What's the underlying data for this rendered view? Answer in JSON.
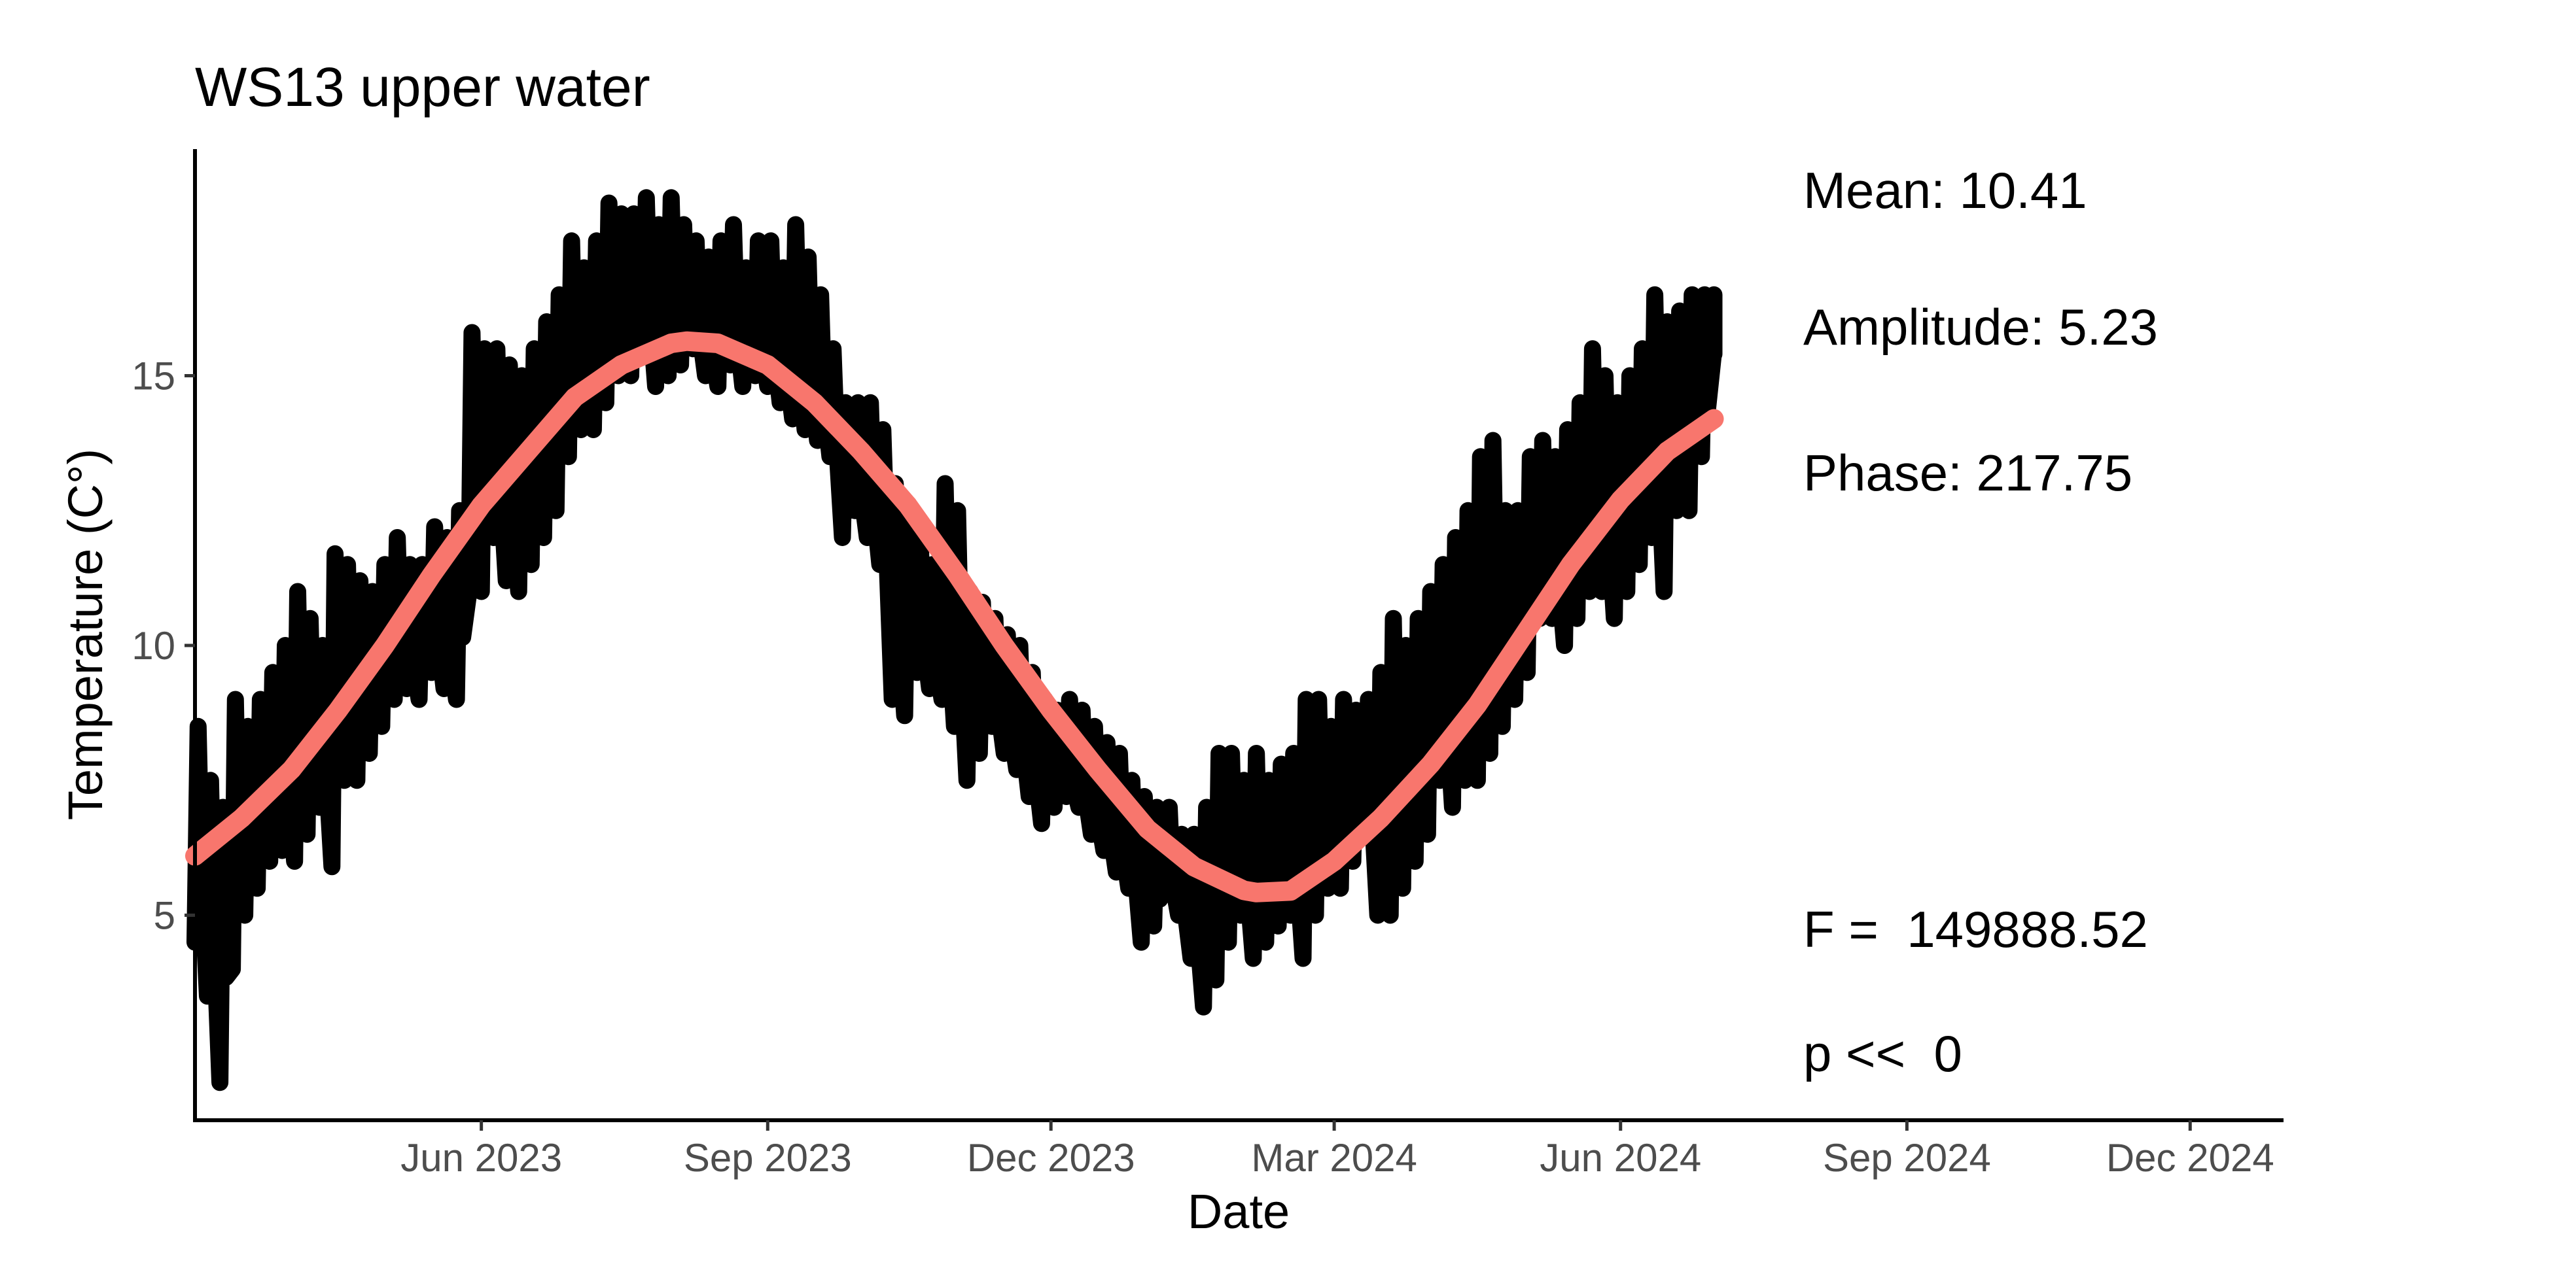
{
  "chart_data": {
    "type": "line",
    "title": "WS13 upper water",
    "xlabel": "Date",
    "ylabel": "Temperature (C°)",
    "xlim": [
      "2023-03-01",
      "2024-12-31"
    ],
    "ylim": [
      1.2,
      19.2
    ],
    "x_ticks": [
      {
        "date": "2023-06-01",
        "label": "Jun 2023"
      },
      {
        "date": "2023-09-01",
        "label": "Sep 2023"
      },
      {
        "date": "2023-12-01",
        "label": "Dec 2023"
      },
      {
        "date": "2024-03-01",
        "label": "Mar 2024"
      },
      {
        "date": "2024-06-01",
        "label": "Jun 2024"
      },
      {
        "date": "2024-09-01",
        "label": "Sep 2024"
      },
      {
        "date": "2024-12-01",
        "label": "Dec 2024"
      }
    ],
    "y_ticks": [
      5,
      10,
      15
    ],
    "grid": false,
    "series": [
      {
        "role": "observed",
        "color": "#000000",
        "x": [
          "2023-03-01",
          "2023-03-05",
          "2023-03-09",
          "2023-03-13",
          "2023-03-17",
          "2023-03-21",
          "2023-03-25",
          "2023-03-29",
          "2023-04-02",
          "2023-04-06",
          "2023-04-10",
          "2023-04-14",
          "2023-04-18",
          "2023-04-22",
          "2023-04-26",
          "2023-04-30",
          "2023-05-04",
          "2023-05-08",
          "2023-05-12",
          "2023-05-16",
          "2023-05-20",
          "2023-05-24",
          "2023-05-28",
          "2023-06-01",
          "2023-06-05",
          "2023-06-09",
          "2023-06-13",
          "2023-06-17",
          "2023-06-21",
          "2023-06-25",
          "2023-06-29",
          "2023-07-03",
          "2023-07-07",
          "2023-07-11",
          "2023-07-15",
          "2023-07-19",
          "2023-07-23",
          "2023-07-27",
          "2023-07-31",
          "2023-08-04",
          "2023-08-08",
          "2023-08-12",
          "2023-08-16",
          "2023-08-20",
          "2023-08-24",
          "2023-08-28",
          "2023-09-01",
          "2023-09-05",
          "2023-09-09",
          "2023-09-13",
          "2023-09-17",
          "2023-09-21",
          "2023-09-25",
          "2023-09-29",
          "2023-10-03",
          "2023-10-07",
          "2023-10-11",
          "2023-10-15",
          "2023-10-19",
          "2023-10-23",
          "2023-10-27",
          "2023-10-31",
          "2023-11-04",
          "2023-11-08",
          "2023-11-12",
          "2023-11-16",
          "2023-11-20",
          "2023-11-24",
          "2023-11-28",
          "2023-12-02",
          "2023-12-06",
          "2023-12-10",
          "2023-12-14",
          "2023-12-18",
          "2023-12-22",
          "2023-12-26",
          "2023-12-30",
          "2024-01-03",
          "2024-01-07",
          "2024-01-11",
          "2024-01-15",
          "2024-01-19",
          "2024-01-23",
          "2024-01-27",
          "2024-01-31",
          "2024-02-04",
          "2024-02-08",
          "2024-02-12",
          "2024-02-16",
          "2024-02-20",
          "2024-02-24",
          "2024-02-28",
          "2024-03-03",
          "2024-03-07",
          "2024-03-11",
          "2024-03-15",
          "2024-03-19",
          "2024-03-23",
          "2024-03-27",
          "2024-03-31",
          "2024-04-04",
          "2024-04-08",
          "2024-04-12",
          "2024-04-16",
          "2024-04-20",
          "2024-04-24",
          "2024-04-28",
          "2024-05-02",
          "2024-05-06",
          "2024-05-10",
          "2024-05-14",
          "2024-05-18",
          "2024-05-22",
          "2024-05-26",
          "2024-05-30",
          "2024-06-03",
          "2024-06-07",
          "2024-06-11",
          "2024-06-15",
          "2024-06-19",
          "2024-06-23",
          "2024-06-27",
          "2024-07-01"
        ],
        "ymin": [
          4.5,
          3.5,
          1.9,
          4.0,
          5.0,
          5.5,
          6.0,
          6.2,
          6.0,
          6.5,
          7.0,
          5.9,
          7.5,
          7.5,
          8.0,
          8.5,
          9.0,
          9.2,
          9.0,
          9.5,
          9.2,
          9.0,
          11.0,
          11.0,
          12.0,
          11.2,
          11.0,
          11.5,
          12.0,
          12.5,
          13.5,
          14.0,
          14.0,
          14.5,
          15.0,
          15.0,
          15.5,
          14.8,
          15.0,
          15.2,
          15.5,
          15.0,
          14.8,
          15.2,
          14.8,
          15.0,
          14.8,
          14.5,
          14.2,
          14.0,
          13.8,
          13.5,
          12.0,
          12.5,
          12.0,
          11.5,
          9.0,
          8.7,
          9.5,
          9.2,
          9.0,
          8.5,
          7.5,
          8.0,
          8.5,
          8.0,
          7.7,
          7.2,
          6.7,
          7.0,
          7.2,
          7.0,
          6.5,
          6.2,
          5.8,
          5.5,
          4.5,
          4.8,
          5.5,
          5.0,
          4.2,
          3.3,
          3.8,
          4.5,
          5.0,
          4.2,
          4.5,
          4.8,
          5.0,
          4.2,
          5.0,
          5.5,
          5.5,
          6.0,
          6.5,
          5.0,
          5.0,
          5.5,
          6.0,
          6.5,
          7.5,
          7.0,
          7.5,
          7.5,
          8.0,
          8.5,
          9.0,
          9.5,
          10.5,
          10.5,
          10.0,
          10.5,
          11.0,
          11.0,
          10.5,
          11.0,
          11.5,
          12.0,
          11.0,
          12.5,
          12.5,
          13.5,
          15.5
        ],
        "ymax": [
          8.5,
          7.5,
          7.0,
          9.0,
          8.5,
          9.0,
          9.5,
          10.0,
          11.0,
          10.5,
          10.0,
          11.7,
          11.5,
          11.2,
          11.0,
          11.5,
          12.0,
          11.5,
          11.5,
          12.2,
          12.0,
          12.5,
          15.8,
          15.5,
          15.5,
          15.2,
          15.0,
          15.5,
          16.0,
          16.5,
          17.5,
          17.0,
          17.5,
          18.2,
          18.0,
          18.0,
          18.3,
          17.8,
          18.3,
          17.8,
          17.5,
          17.2,
          17.5,
          17.8,
          17.0,
          17.5,
          17.5,
          17.0,
          17.8,
          17.2,
          16.5,
          15.5,
          14.5,
          14.5,
          14.5,
          14.0,
          13.0,
          12.5,
          12.0,
          11.5,
          13.0,
          12.5,
          11.0,
          10.8,
          10.5,
          10.2,
          10.0,
          9.5,
          9.0,
          8.8,
          9.0,
          8.8,
          8.5,
          8.2,
          8.0,
          7.5,
          7.2,
          7.0,
          7.0,
          6.5,
          6.5,
          7.0,
          8.0,
          8.0,
          7.5,
          8.0,
          7.5,
          7.8,
          8.0,
          9.0,
          9.0,
          8.5,
          9.0,
          8.8,
          9.0,
          9.5,
          10.5,
          10.0,
          10.5,
          11.0,
          11.5,
          12.0,
          12.5,
          13.5,
          13.8,
          12.5,
          12.5,
          13.5,
          13.8,
          13.5,
          14.0,
          14.5,
          15.5,
          15.0,
          14.5,
          15.0,
          15.5,
          16.5,
          16.0,
          16.2,
          16.5,
          16.5,
          16.5
        ]
      },
      {
        "role": "fitted",
        "color": "#F8766D",
        "x": [
          "2023-03-01",
          "2023-03-16",
          "2023-04-01",
          "2023-04-16",
          "2023-05-01",
          "2023-05-16",
          "2023-06-01",
          "2023-06-16",
          "2023-07-01",
          "2023-07-16",
          "2023-08-01",
          "2023-08-06",
          "2023-08-16",
          "2023-09-01",
          "2023-09-16",
          "2023-10-01",
          "2023-10-16",
          "2023-11-01",
          "2023-11-16",
          "2023-12-01",
          "2023-12-16",
          "2024-01-01",
          "2024-01-16",
          "2024-02-01",
          "2024-02-05",
          "2024-02-16",
          "2024-03-01",
          "2024-03-16",
          "2024-04-01",
          "2024-04-16",
          "2024-05-01",
          "2024-05-16",
          "2024-06-01",
          "2024-06-16",
          "2024-07-01"
        ],
        "y": [
          6.1,
          6.8,
          7.7,
          8.8,
          10.0,
          11.3,
          12.6,
          13.6,
          14.6,
          15.2,
          15.6,
          15.64,
          15.6,
          15.2,
          14.5,
          13.6,
          12.6,
          11.3,
          10.0,
          8.8,
          7.7,
          6.6,
          5.9,
          5.46,
          5.42,
          5.45,
          6.0,
          6.8,
          7.8,
          8.9,
          10.2,
          11.5,
          12.7,
          13.6,
          14.2
        ]
      }
    ],
    "annotations": [
      "Mean: 10.41",
      "Amplitude: 5.23",
      "Phase: 217.75",
      "F =  149888.52",
      "p <<  0"
    ]
  }
}
